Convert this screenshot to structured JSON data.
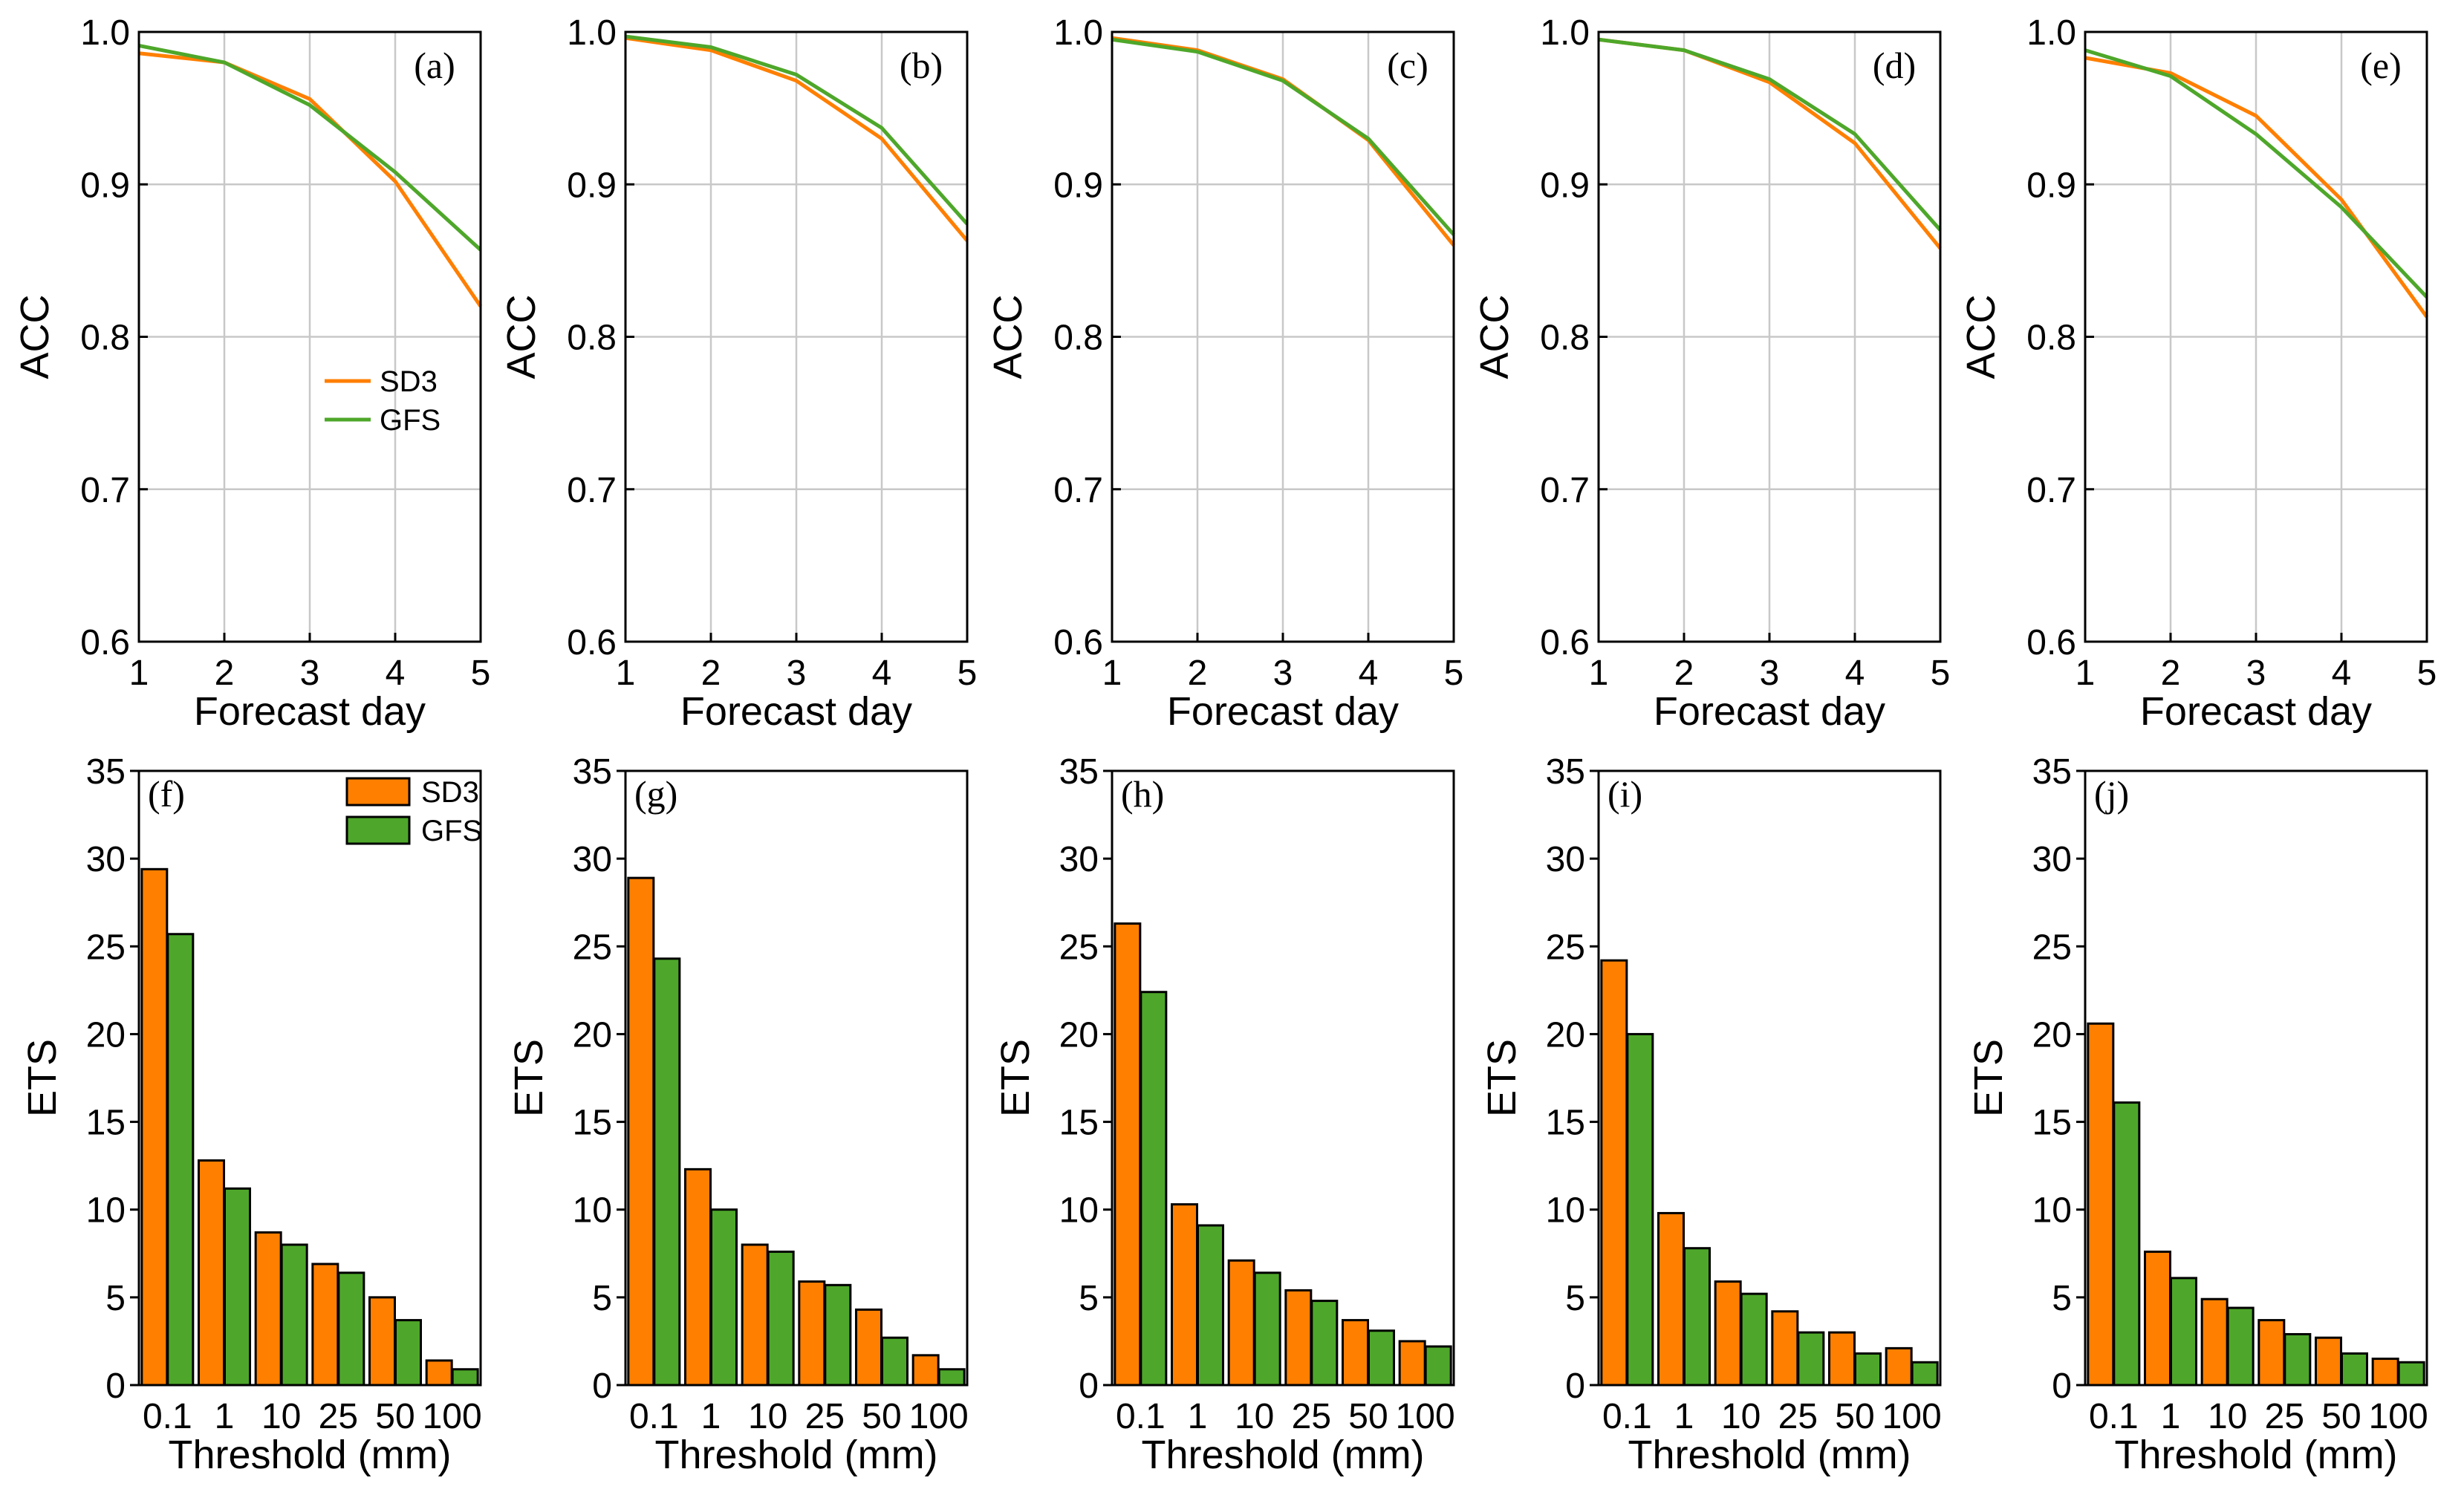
{
  "colors": {
    "SD3": "#FF7F00",
    "GFS": "#4EA72A",
    "grid": "#c8c8c8"
  },
  "chart_data": [
    {
      "type": "line",
      "panel": "(a)",
      "xlabel": "Forecast day",
      "ylabel": "ACC",
      "x": [
        1,
        2,
        3,
        4,
        5
      ],
      "xlim": [
        1,
        5
      ],
      "ylim": [
        0.6,
        1.0
      ],
      "yticks": [
        "0.6",
        "0.7",
        "0.8",
        "0.9",
        "1.0"
      ],
      "grid": true,
      "legend": "middle-right",
      "series": [
        {
          "name": "SD3",
          "values": [
            0.986,
            0.98,
            0.956,
            0.902,
            0.82
          ]
        },
        {
          "name": "GFS",
          "values": [
            0.991,
            0.98,
            0.952,
            0.908,
            0.857
          ]
        }
      ]
    },
    {
      "type": "line",
      "panel": "(b)",
      "xlabel": "Forecast day",
      "ylabel": "ACC",
      "x": [
        1,
        2,
        3,
        4,
        5
      ],
      "xlim": [
        1,
        5
      ],
      "ylim": [
        0.6,
        1.0
      ],
      "yticks": [
        "0.6",
        "0.7",
        "0.8",
        "0.9",
        "1.0"
      ],
      "grid": true,
      "series": [
        {
          "name": "SD3",
          "values": [
            0.996,
            0.988,
            0.968,
            0.93,
            0.863
          ]
        },
        {
          "name": "GFS",
          "values": [
            0.997,
            0.99,
            0.972,
            0.937,
            0.874
          ]
        }
      ]
    },
    {
      "type": "line",
      "panel": "(c)",
      "xlabel": "Forecast day",
      "ylabel": "ACC",
      "x": [
        1,
        2,
        3,
        4,
        5
      ],
      "xlim": [
        1,
        5
      ],
      "ylim": [
        0.6,
        1.0
      ],
      "yticks": [
        "0.6",
        "0.7",
        "0.8",
        "0.9",
        "1.0"
      ],
      "grid": true,
      "series": [
        {
          "name": "SD3",
          "values": [
            0.996,
            0.988,
            0.969,
            0.929,
            0.86
          ]
        },
        {
          "name": "GFS",
          "values": [
            0.995,
            0.987,
            0.968,
            0.93,
            0.867
          ]
        }
      ]
    },
    {
      "type": "line",
      "panel": "(d)",
      "xlabel": "Forecast day",
      "ylabel": "ACC",
      "x": [
        1,
        2,
        3,
        4,
        5
      ],
      "xlim": [
        1,
        5
      ],
      "ylim": [
        0.6,
        1.0
      ],
      "yticks": [
        "0.6",
        "0.7",
        "0.8",
        "0.9",
        "1.0"
      ],
      "grid": true,
      "series": [
        {
          "name": "SD3",
          "values": [
            0.995,
            0.988,
            0.967,
            0.927,
            0.858
          ]
        },
        {
          "name": "GFS",
          "values": [
            0.995,
            0.988,
            0.969,
            0.933,
            0.87
          ]
        }
      ]
    },
    {
      "type": "line",
      "panel": "(e)",
      "xlabel": "Forecast day",
      "ylabel": "ACC",
      "x": [
        1,
        2,
        3,
        4,
        5
      ],
      "xlim": [
        1,
        5
      ],
      "ylim": [
        0.6,
        1.0
      ],
      "yticks": [
        "0.6",
        "0.7",
        "0.8",
        "0.9",
        "1.0"
      ],
      "grid": true,
      "series": [
        {
          "name": "SD3",
          "values": [
            0.983,
            0.973,
            0.945,
            0.89,
            0.813
          ]
        },
        {
          "name": "GFS",
          "values": [
            0.988,
            0.971,
            0.933,
            0.885,
            0.826
          ]
        }
      ]
    },
    {
      "type": "bar",
      "panel": "(f)",
      "xlabel": "Threshold (mm)",
      "ylabel": "ETS",
      "categories": [
        "0.1",
        "1",
        "10",
        "25",
        "50",
        "100"
      ],
      "ylim": [
        0,
        35
      ],
      "yticks": [
        "0",
        "5",
        "10",
        "15",
        "20",
        "25",
        "30",
        "35"
      ],
      "legend": "top-right",
      "series": [
        {
          "name": "SD3",
          "values": [
            29.4,
            12.8,
            8.7,
            6.9,
            5.0,
            1.4
          ]
        },
        {
          "name": "GFS",
          "values": [
            25.7,
            11.2,
            8.0,
            6.4,
            3.7,
            0.9
          ]
        }
      ]
    },
    {
      "type": "bar",
      "panel": "(g)",
      "xlabel": "Threshold (mm)",
      "ylabel": "ETS",
      "categories": [
        "0.1",
        "1",
        "10",
        "25",
        "50",
        "100"
      ],
      "ylim": [
        0,
        35
      ],
      "yticks": [
        "0",
        "5",
        "10",
        "15",
        "20",
        "25",
        "30",
        "35"
      ],
      "series": [
        {
          "name": "SD3",
          "values": [
            28.9,
            12.3,
            8.0,
            5.9,
            4.3,
            1.7
          ]
        },
        {
          "name": "GFS",
          "values": [
            24.3,
            10.0,
            7.6,
            5.7,
            2.7,
            0.9
          ]
        }
      ]
    },
    {
      "type": "bar",
      "panel": "(h)",
      "xlabel": "Threshold (mm)",
      "ylabel": "ETS",
      "categories": [
        "0.1",
        "1",
        "10",
        "25",
        "50",
        "100"
      ],
      "ylim": [
        0,
        35
      ],
      "yticks": [
        "0",
        "5",
        "10",
        "15",
        "20",
        "25",
        "30",
        "35"
      ],
      "series": [
        {
          "name": "SD3",
          "values": [
            26.3,
            10.3,
            7.1,
            5.4,
            3.7,
            2.5
          ]
        },
        {
          "name": "GFS",
          "values": [
            22.4,
            9.1,
            6.4,
            4.8,
            3.1,
            2.2
          ]
        }
      ]
    },
    {
      "type": "bar",
      "panel": "(i)",
      "xlabel": "Threshold (mm)",
      "ylabel": "ETS",
      "categories": [
        "0.1",
        "1",
        "10",
        "25",
        "50",
        "100"
      ],
      "ylim": [
        0,
        35
      ],
      "yticks": [
        "0",
        "5",
        "10",
        "15",
        "20",
        "25",
        "30",
        "35"
      ],
      "series": [
        {
          "name": "SD3",
          "values": [
            24.2,
            9.8,
            5.9,
            4.2,
            3.0,
            2.1
          ]
        },
        {
          "name": "GFS",
          "values": [
            20.0,
            7.8,
            5.2,
            3.0,
            1.8,
            1.3
          ]
        }
      ]
    },
    {
      "type": "bar",
      "panel": "(j)",
      "xlabel": "Threshold (mm)",
      "ylabel": "ETS",
      "categories": [
        "0.1",
        "1",
        "10",
        "25",
        "50",
        "100"
      ],
      "ylim": [
        0,
        35
      ],
      "yticks": [
        "0",
        "5",
        "10",
        "15",
        "20",
        "25",
        "30",
        "35"
      ],
      "series": [
        {
          "name": "SD3",
          "values": [
            20.6,
            7.6,
            4.9,
            3.7,
            2.7,
            1.5
          ]
        },
        {
          "name": "GFS",
          "values": [
            16.1,
            6.1,
            4.4,
            2.9,
            1.8,
            1.3
          ]
        }
      ]
    }
  ]
}
